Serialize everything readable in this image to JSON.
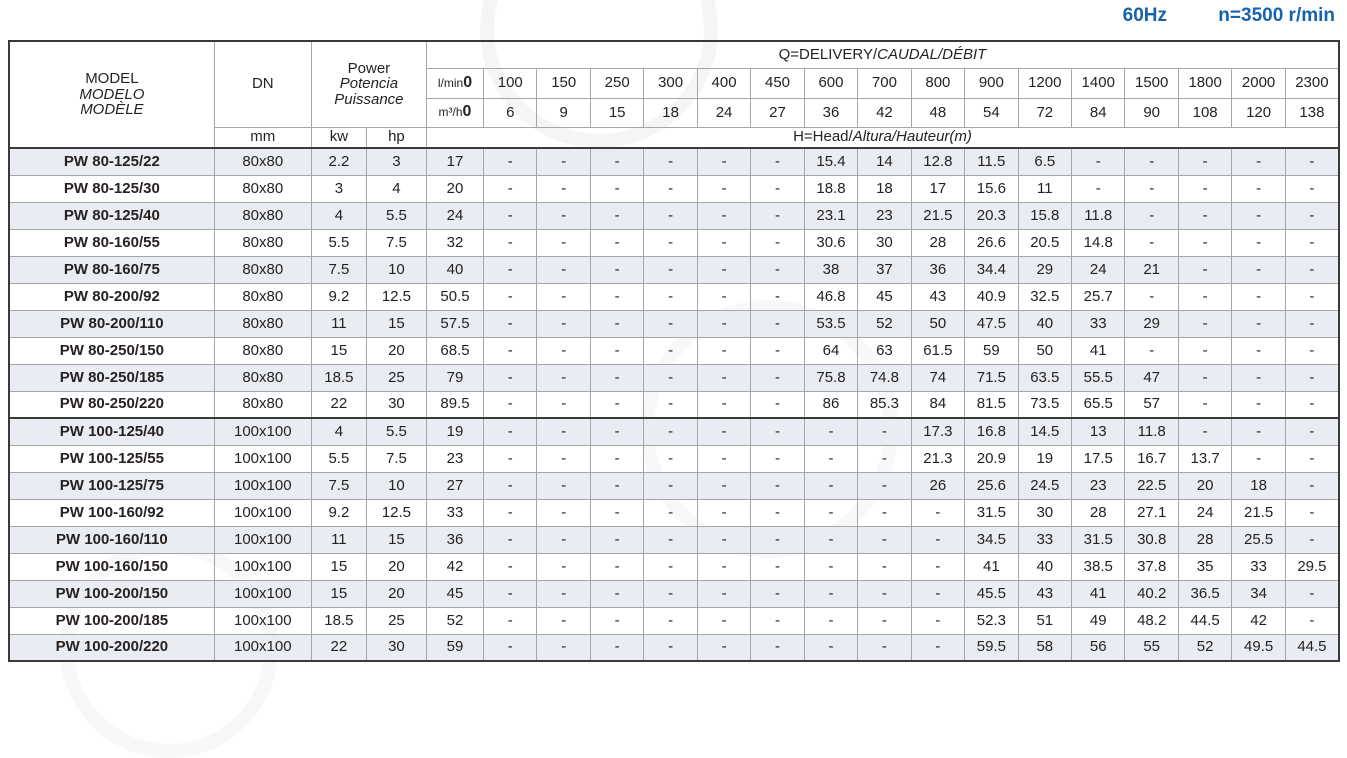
{
  "note": {
    "frequency": "60Hz",
    "speed": "n=3500 r/min"
  },
  "colors": {
    "accent_blue": "#1563ab",
    "stripe": "#e9ecf3",
    "border_dark": "#3a3a3a",
    "grid": "#a6a6a6"
  },
  "table": {
    "header": {
      "model_line1": "MODEL",
      "model_line2": "MODELO",
      "model_line3": "MODÈLE",
      "dn_label": "DN",
      "dn_unit": "mm",
      "power_line1": "Power",
      "power_line2": "Potencia",
      "power_line3": "Puissance",
      "kw_label": "kw",
      "hp_label": "hp",
      "q_title_main": "Q=DELIVERY/",
      "q_title_italic": "CAUDAL/DÉBIT",
      "lmin_label": "l/min",
      "lmin_first": "0",
      "lmin_values": [
        "100",
        "150",
        "250",
        "300",
        "400",
        "450",
        "600",
        "700",
        "800",
        "900",
        "1200",
        "1400",
        "1500",
        "1800",
        "2000",
        "2300"
      ],
      "m3h_label": "m³/h",
      "m3h_first": "0",
      "m3h_values": [
        "6",
        "9",
        "15",
        "18",
        "24",
        "27",
        "36",
        "42",
        "48",
        "54",
        "72",
        "84",
        "90",
        "108",
        "120",
        "138"
      ],
      "head_title_main": "H=Head/",
      "head_title_italic": "Altura/Hauteur(m)"
    },
    "rows": [
      {
        "model": "PW 80-125/22",
        "series": "PW80",
        "dn": "80x80",
        "kw": "2.2",
        "hp": "3",
        "heads": [
          "17",
          "-",
          "-",
          "-",
          "-",
          "-",
          "-",
          "15.4",
          "14",
          "12.8",
          "11.5",
          "6.5",
          "-",
          "-",
          "-",
          "-",
          "-"
        ]
      },
      {
        "model": "PW 80-125/30",
        "series": "PW80",
        "dn": "80x80",
        "kw": "3",
        "hp": "4",
        "heads": [
          "20",
          "-",
          "-",
          "-",
          "-",
          "-",
          "-",
          "18.8",
          "18",
          "17",
          "15.6",
          "11",
          "-",
          "-",
          "-",
          "-",
          "-"
        ]
      },
      {
        "model": "PW 80-125/40",
        "series": "PW80",
        "dn": "80x80",
        "kw": "4",
        "hp": "5.5",
        "heads": [
          "24",
          "-",
          "-",
          "-",
          "-",
          "-",
          "-",
          "23.1",
          "23",
          "21.5",
          "20.3",
          "15.8",
          "11.8",
          "-",
          "-",
          "-",
          "-"
        ]
      },
      {
        "model": "PW 80-160/55",
        "series": "PW80",
        "dn": "80x80",
        "kw": "5.5",
        "hp": "7.5",
        "heads": [
          "32",
          "-",
          "-",
          "-",
          "-",
          "-",
          "-",
          "30.6",
          "30",
          "28",
          "26.6",
          "20.5",
          "14.8",
          "-",
          "-",
          "-",
          "-"
        ]
      },
      {
        "model": "PW 80-160/75",
        "series": "PW80",
        "dn": "80x80",
        "kw": "7.5",
        "hp": "10",
        "heads": [
          "40",
          "-",
          "-",
          "-",
          "-",
          "-",
          "-",
          "38",
          "37",
          "36",
          "34.4",
          "29",
          "24",
          "21",
          "-",
          "-",
          "-"
        ]
      },
      {
        "model": "PW 80-200/92",
        "series": "PW80",
        "dn": "80x80",
        "kw": "9.2",
        "hp": "12.5",
        "heads": [
          "50.5",
          "-",
          "-",
          "-",
          "-",
          "-",
          "-",
          "46.8",
          "45",
          "43",
          "40.9",
          "32.5",
          "25.7",
          "-",
          "-",
          "-",
          "-"
        ]
      },
      {
        "model": "PW 80-200/110",
        "series": "PW80",
        "dn": "80x80",
        "kw": "11",
        "hp": "15",
        "heads": [
          "57.5",
          "-",
          "-",
          "-",
          "-",
          "-",
          "-",
          "53.5",
          "52",
          "50",
          "47.5",
          "40",
          "33",
          "29",
          "-",
          "-",
          "-"
        ]
      },
      {
        "model": "PW 80-250/150",
        "series": "PW80",
        "dn": "80x80",
        "kw": "15",
        "hp": "20",
        "heads": [
          "68.5",
          "-",
          "-",
          "-",
          "-",
          "-",
          "-",
          "64",
          "63",
          "61.5",
          "59",
          "50",
          "41",
          "-",
          "-",
          "-",
          "-"
        ]
      },
      {
        "model": "PW 80-250/185",
        "series": "PW80",
        "dn": "80x80",
        "kw": "18.5",
        "hp": "25",
        "heads": [
          "79",
          "-",
          "-",
          "-",
          "-",
          "-",
          "-",
          "75.8",
          "74.8",
          "74",
          "71.5",
          "63.5",
          "55.5",
          "47",
          "-",
          "-",
          "-"
        ]
      },
      {
        "model": "PW 80-250/220",
        "series": "PW80",
        "dn": "80x80",
        "kw": "22",
        "hp": "30",
        "heads": [
          "89.5",
          "-",
          "-",
          "-",
          "-",
          "-",
          "-",
          "86",
          "85.3",
          "84",
          "81.5",
          "73.5",
          "65.5",
          "57",
          "-",
          "-",
          "-"
        ]
      },
      {
        "model": "PW 100-125/40",
        "series": "PW100",
        "dn": "100x100",
        "kw": "4",
        "hp": "5.5",
        "heads": [
          "19",
          "-",
          "-",
          "-",
          "-",
          "-",
          "-",
          "-",
          "-",
          "17.3",
          "16.8",
          "14.5",
          "13",
          "11.8",
          "-",
          "-",
          "-"
        ]
      },
      {
        "model": "PW 100-125/55",
        "series": "PW100",
        "dn": "100x100",
        "kw": "5.5",
        "hp": "7.5",
        "heads": [
          "23",
          "-",
          "-",
          "-",
          "-",
          "-",
          "-",
          "-",
          "-",
          "21.3",
          "20.9",
          "19",
          "17.5",
          "16.7",
          "13.7",
          "-",
          "-"
        ]
      },
      {
        "model": "PW 100-125/75",
        "series": "PW100",
        "dn": "100x100",
        "kw": "7.5",
        "hp": "10",
        "heads": [
          "27",
          "-",
          "-",
          "-",
          "-",
          "-",
          "-",
          "-",
          "-",
          "26",
          "25.6",
          "24.5",
          "23",
          "22.5",
          "20",
          "18",
          "-"
        ]
      },
      {
        "model": "PW 100-160/92",
        "series": "PW100",
        "dn": "100x100",
        "kw": "9.2",
        "hp": "12.5",
        "heads": [
          "33",
          "-",
          "-",
          "-",
          "-",
          "-",
          "-",
          "-",
          "-",
          "-",
          "31.5",
          "30",
          "28",
          "27.1",
          "24",
          "21.5",
          "-"
        ]
      },
      {
        "model": "PW 100-160/110",
        "series": "PW100",
        "dn": "100x100",
        "kw": "11",
        "hp": "15",
        "heads": [
          "36",
          "-",
          "-",
          "-",
          "-",
          "-",
          "-",
          "-",
          "-",
          "-",
          "34.5",
          "33",
          "31.5",
          "30.8",
          "28",
          "25.5",
          "-"
        ]
      },
      {
        "model": "PW 100-160/150",
        "series": "PW100",
        "dn": "100x100",
        "kw": "15",
        "hp": "20",
        "heads": [
          "42",
          "-",
          "-",
          "-",
          "-",
          "-",
          "-",
          "-",
          "-",
          "-",
          "41",
          "40",
          "38.5",
          "37.8",
          "35",
          "33",
          "29.5"
        ]
      },
      {
        "model": "PW 100-200/150",
        "series": "PW100",
        "dn": "100x100",
        "kw": "15",
        "hp": "20",
        "heads": [
          "45",
          "-",
          "-",
          "-",
          "-",
          "-",
          "-",
          "-",
          "-",
          "-",
          "45.5",
          "43",
          "41",
          "40.2",
          "36.5",
          "34",
          "-"
        ]
      },
      {
        "model": "PW 100-200/185",
        "series": "PW100",
        "dn": "100x100",
        "kw": "18.5",
        "hp": "25",
        "heads": [
          "52",
          "-",
          "-",
          "-",
          "-",
          "-",
          "-",
          "-",
          "-",
          "-",
          "52.3",
          "51",
          "49",
          "48.2",
          "44.5",
          "42",
          "-"
        ]
      },
      {
        "model": "PW 100-200/220",
        "series": "PW100",
        "dn": "100x100",
        "kw": "22",
        "hp": "30",
        "heads": [
          "59",
          "-",
          "-",
          "-",
          "-",
          "-",
          "-",
          "-",
          "-",
          "-",
          "59.5",
          "58",
          "56",
          "55",
          "52",
          "49.5",
          "44.5"
        ]
      }
    ]
  }
}
